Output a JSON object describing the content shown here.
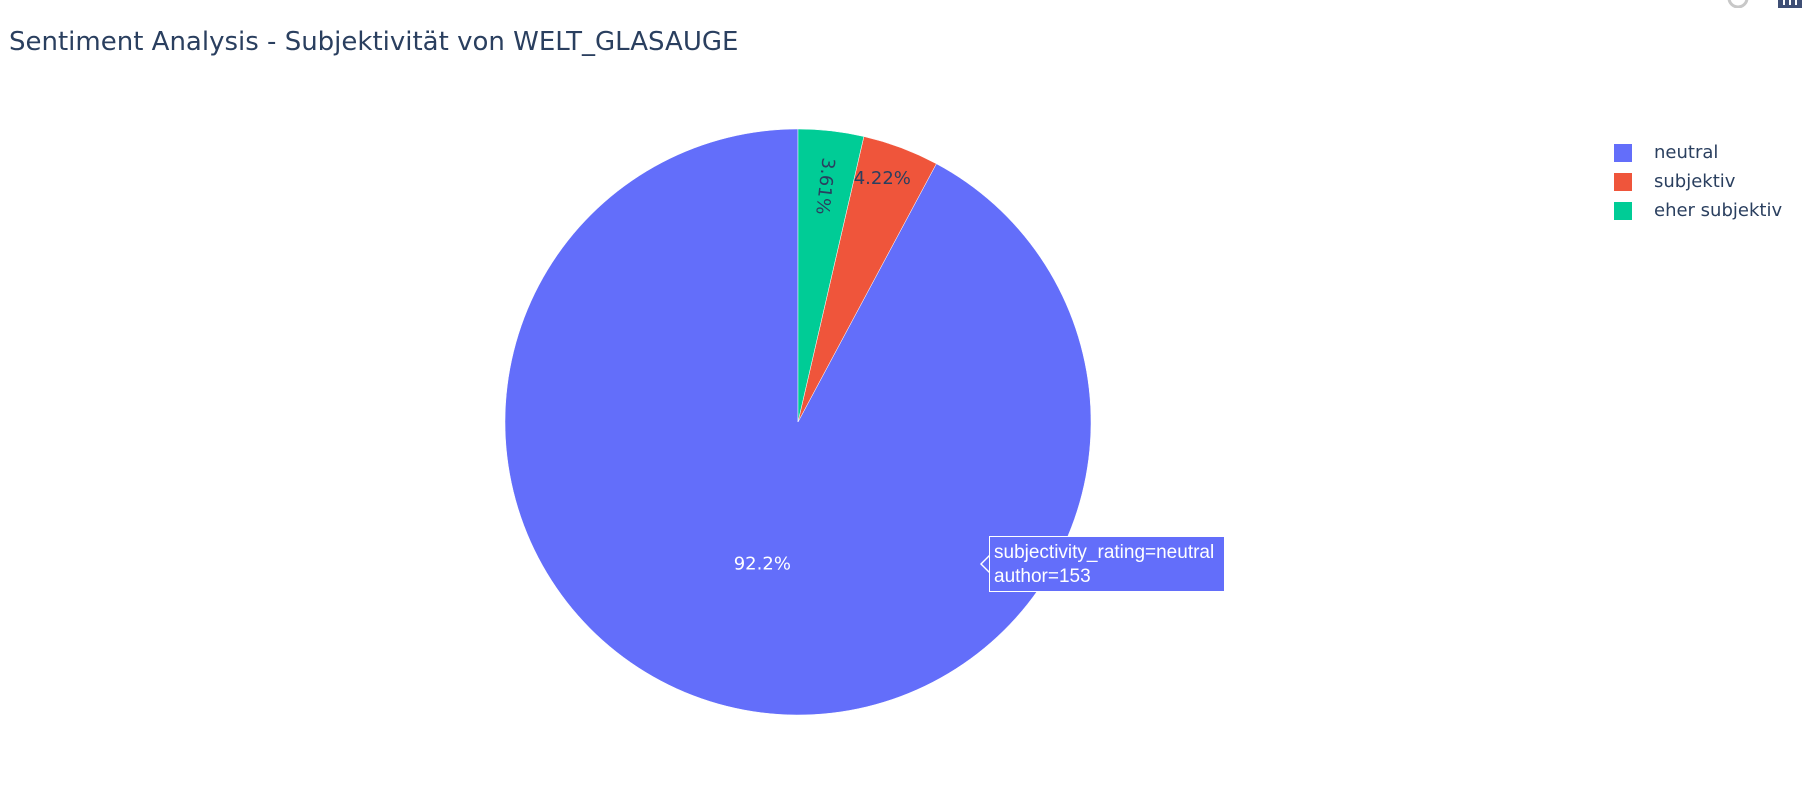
{
  "title": "Sentiment Analysis - Subjektivität von WELT_GLASAUGE",
  "chart_data": {
    "type": "pie",
    "title": "Sentiment Analysis - Subjektivität von WELT_GLASAUGE",
    "slices": [
      {
        "label": "neutral",
        "percent": 92.2,
        "percent_text": "92.2%",
        "color": "#636efa"
      },
      {
        "label": "subjektiv",
        "percent": 4.22,
        "percent_text": "4.22%",
        "color": "#ef553b"
      },
      {
        "label": "eher subjektiv",
        "percent": 3.61,
        "percent_text": "3.61%",
        "color": "#00cc96"
      }
    ],
    "legend_position": "top-right",
    "direction": "counterclockwise",
    "start_angle": "12 o'clock"
  },
  "legend": [
    {
      "label": "neutral",
      "color": "#636efa"
    },
    {
      "label": "subjektiv",
      "color": "#ef553b"
    },
    {
      "label": "eher subjektiv",
      "color": "#00cc96"
    }
  ],
  "tooltip": {
    "line1": "subjectivity_rating=neutral",
    "line2": "author=153",
    "color": "#636efa"
  },
  "modebar": {
    "icons": [
      "reset-axes-icon",
      "plotly-logo-icon"
    ]
  }
}
